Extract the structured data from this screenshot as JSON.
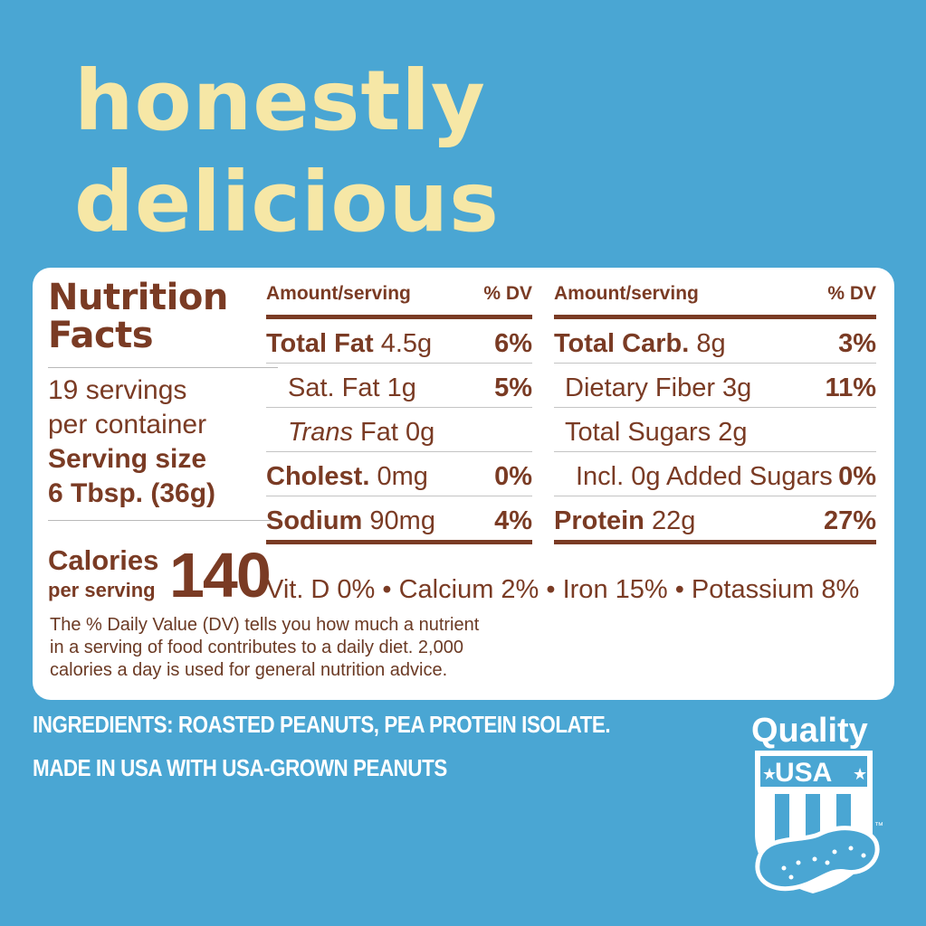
{
  "headline": {
    "line1": "honestly",
    "line2": "delicious"
  },
  "nutrition": {
    "title_line1": "Nutrition",
    "title_line2": "Facts",
    "servings_line1": "19 servings",
    "servings_line2": "per container",
    "serving_size_line1": "Serving size",
    "serving_size_line2": "6 Tbsp. (36g)",
    "calories_label": "Calories",
    "calories_sub": "per serving",
    "calories_value": "140",
    "header_amount": "Amount/serving",
    "header_dv": "% DV",
    "left_rows": [
      {
        "bold": "Total Fat",
        "amount": " 4.5g",
        "dv": "6%"
      },
      {
        "bold": "",
        "amount": "Sat. Fat 1g",
        "dv": "5%"
      },
      {
        "italic": "Trans",
        "amount": " Fat 0g",
        "dv": ""
      },
      {
        "bold": "Cholest.",
        "amount": " 0mg",
        "dv": "0%"
      },
      {
        "bold": "Sodium",
        "amount": " 90mg",
        "dv": "4%"
      }
    ],
    "right_rows": [
      {
        "bold": "Total Carb.",
        "amount": " 8g",
        "dv": "3%"
      },
      {
        "bold": "",
        "amount": "Dietary Fiber 3g",
        "dv": "11%"
      },
      {
        "bold": "",
        "amount": "Total Sugars 2g",
        "dv": ""
      },
      {
        "bold": "",
        "amount": "Incl. 0g Added Sugars",
        "dv": "0%"
      },
      {
        "bold": "Protein",
        "amount": " 22g",
        "dv": "27%"
      }
    ],
    "vitamins": "Vit. D 0% • Calcium 2% • Iron 15% • Potassium 8%",
    "dv_note_line1": "The % Daily Value (DV) tells you how much a nutrient",
    "dv_note_line2": "in a serving of food contributes to a daily diet. 2,000",
    "dv_note_line3": "calories a day is used for general nutrition advice."
  },
  "footer": {
    "ingredients": "INGREDIENTS: ROASTED PEANUTS, PEA PROTEIN ISOLATE.",
    "made_in": "MADE IN USA WITH USA-GROWN PEANUTS"
  },
  "badge": {
    "top": "Quality",
    "middle": "USA",
    "tm": "™",
    "icon": "peanut-shield-icon"
  },
  "colors": {
    "background": "#4aa6d3",
    "headline": "#f6e7a6",
    "label_text": "#7a3b24"
  }
}
